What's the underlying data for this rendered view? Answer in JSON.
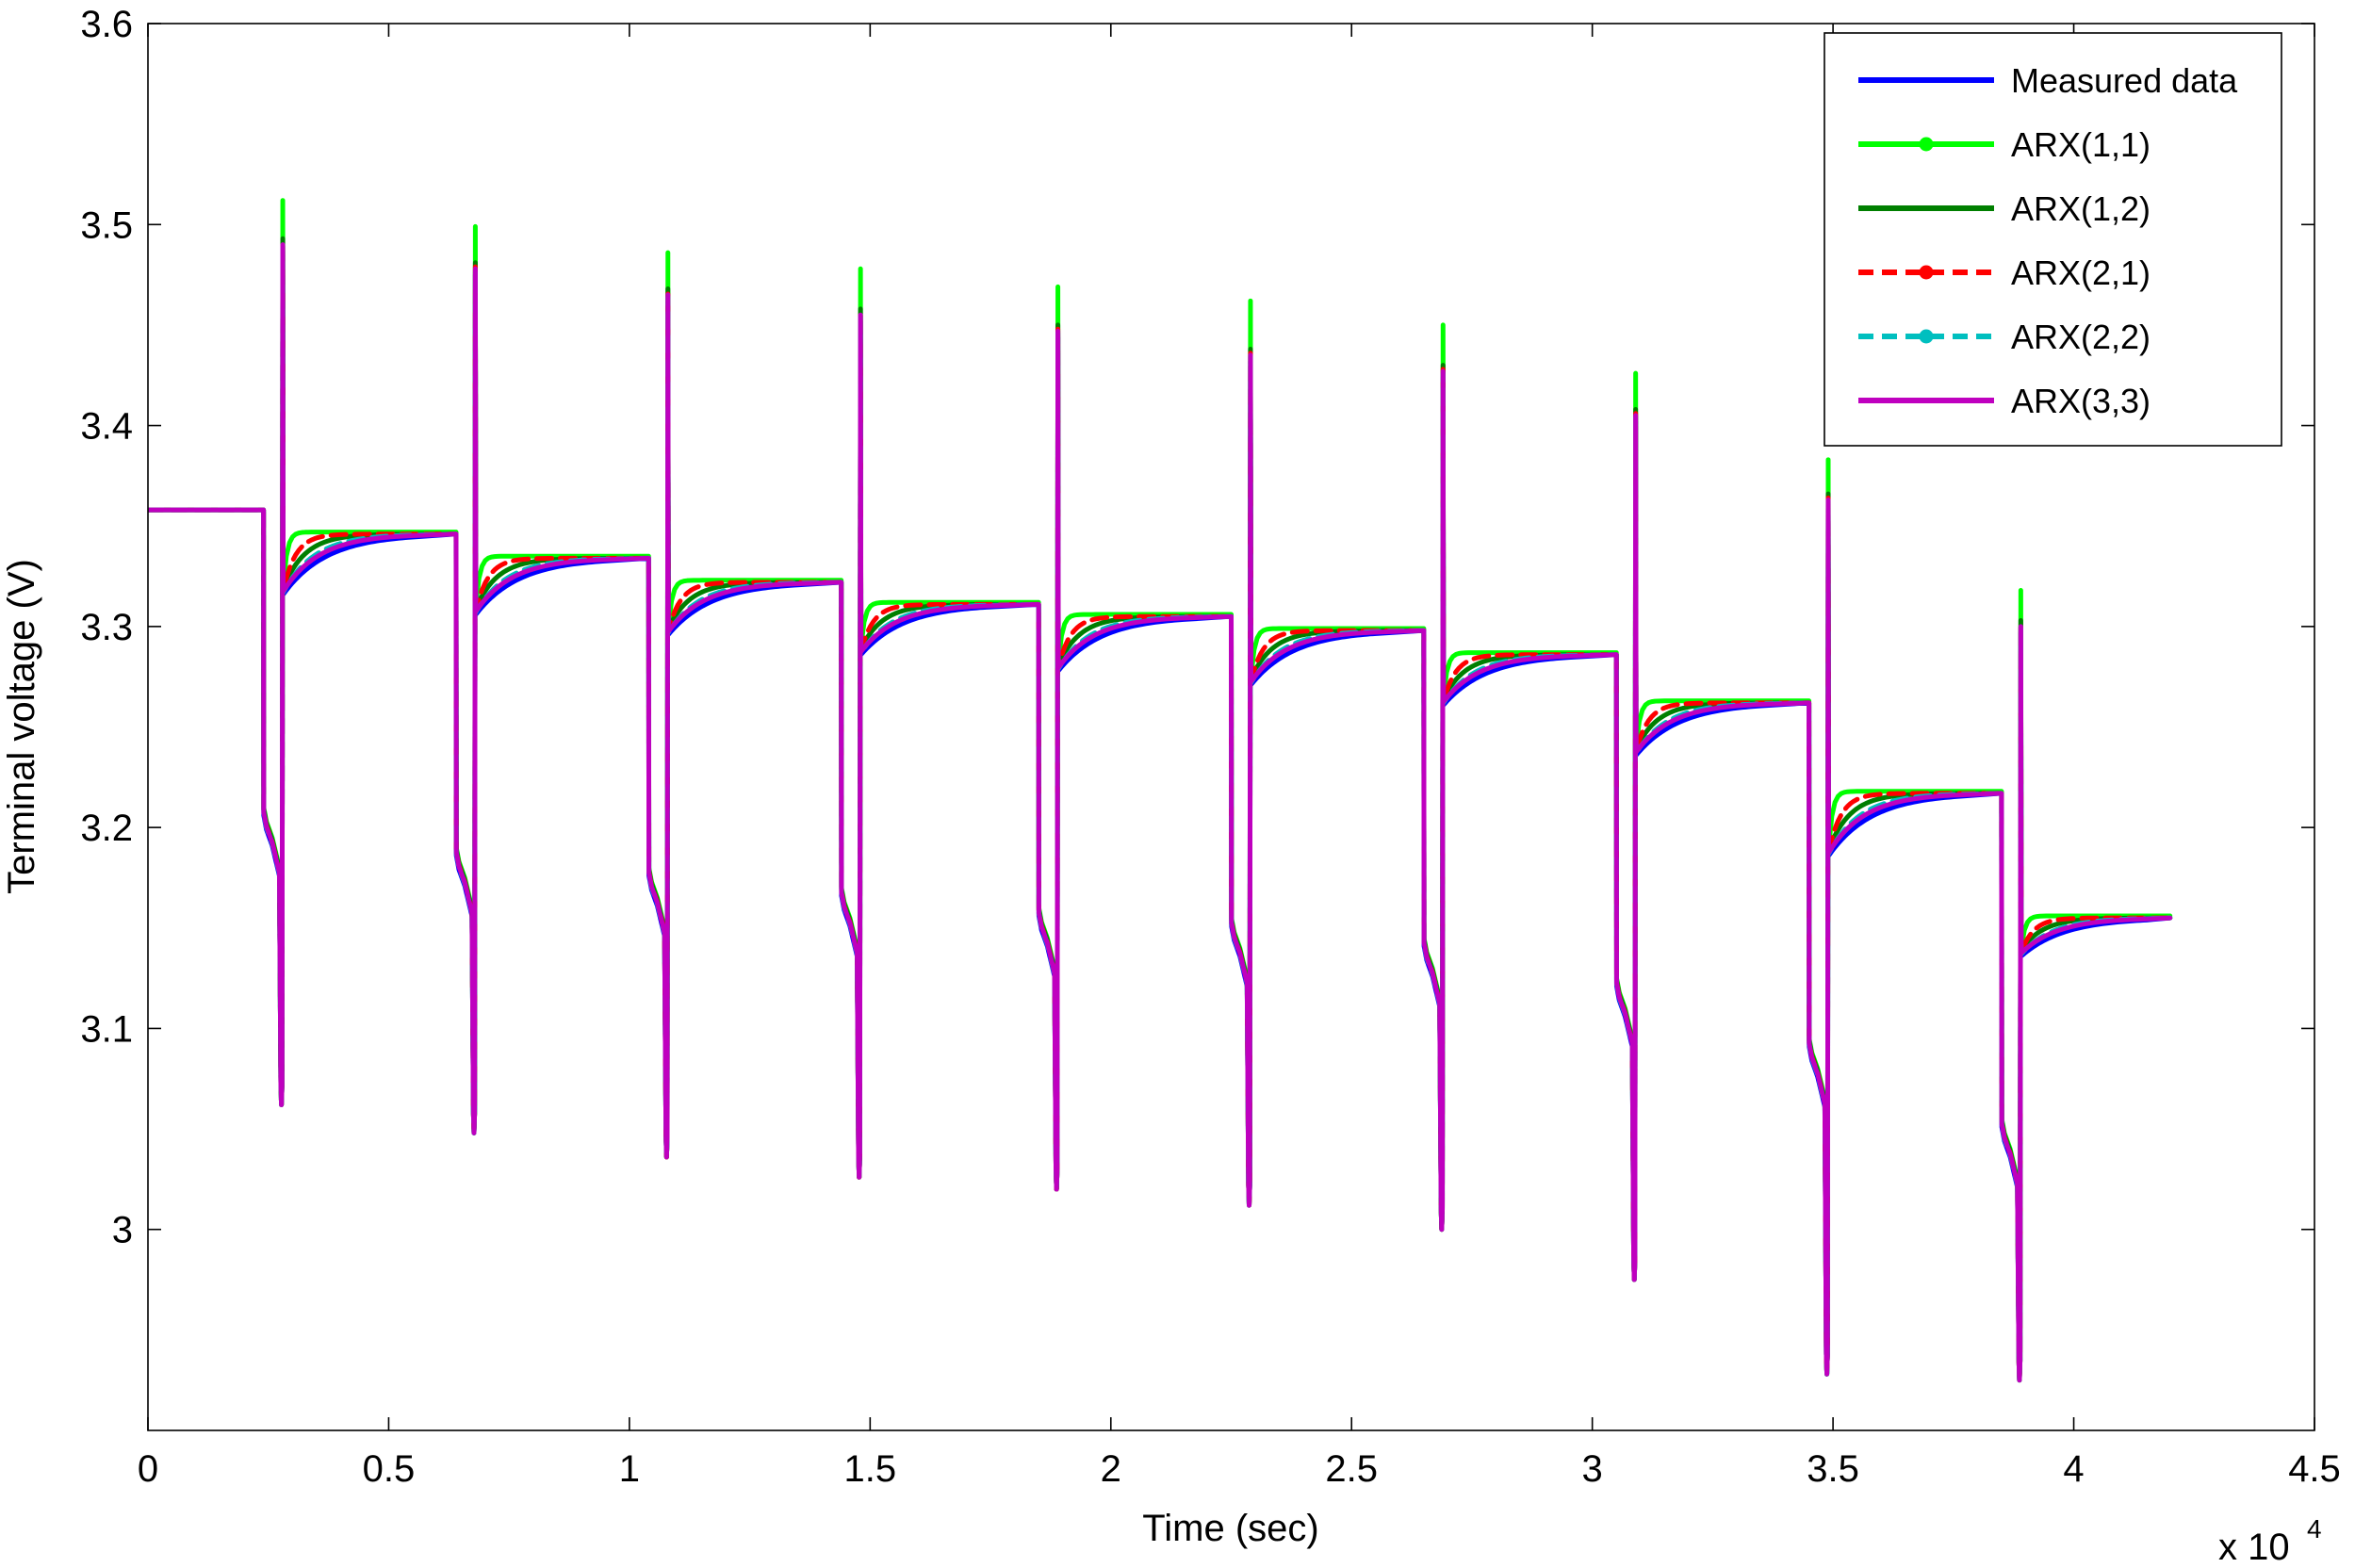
{
  "chart_data": {
    "type": "line",
    "title": "",
    "xlabel": "Time (sec)",
    "ylabel": "Terminal voltage (V)",
    "x_multiplier_label": "x 10",
    "x_multiplier_exponent": "4",
    "xlim": [
      0,
      45000
    ],
    "ylim": [
      2.9,
      3.6
    ],
    "grid": false,
    "legend_position": "top-right",
    "x_ticks": [
      0,
      5000,
      10000,
      15000,
      20000,
      25000,
      30000,
      35000,
      40000,
      45000
    ],
    "x_tick_labels": [
      "0",
      "0.5",
      "1",
      "1.5",
      "2",
      "2.5",
      "3",
      "3.5",
      "4",
      "4.5"
    ],
    "y_ticks": [
      3.0,
      3.1,
      3.2,
      3.3,
      3.4,
      3.5,
      3.6
    ],
    "y_tick_labels": [
      "3",
      "3.1",
      "3.2",
      "3.3",
      "3.4",
      "3.5",
      "3.6"
    ],
    "pulse_cycles": [
      {
        "start": 2400,
        "rest_before": 3.358,
        "mid_low": 3.195,
        "min": 3.062,
        "peak_measured": 3.495,
        "peak_arx11": 3.512,
        "recover_start": 3.32,
        "rest_after": 3.346
      },
      {
        "start": 6400,
        "rest_before": 3.346,
        "mid_low": 3.175,
        "min": 3.048,
        "peak_measured": 3.483,
        "peak_arx11": 3.499,
        "recover_start": 3.31,
        "rest_after": 3.334
      },
      {
        "start": 10400,
        "rest_before": 3.334,
        "mid_low": 3.165,
        "min": 3.036,
        "peak_measured": 3.47,
        "peak_arx11": 3.486,
        "recover_start": 3.3,
        "rest_after": 3.322
      },
      {
        "start": 14400,
        "rest_before": 3.322,
        "mid_low": 3.155,
        "min": 3.026,
        "peak_measured": 3.46,
        "peak_arx11": 3.478,
        "recover_start": 3.29,
        "rest_after": 3.311
      },
      {
        "start": 18500,
        "rest_before": 3.311,
        "mid_low": 3.145,
        "min": 3.02,
        "peak_measured": 3.452,
        "peak_arx11": 3.469,
        "recover_start": 3.282,
        "rest_after": 3.305
      },
      {
        "start": 22500,
        "rest_before": 3.305,
        "mid_low": 3.14,
        "min": 3.012,
        "peak_measured": 3.44,
        "peak_arx11": 3.462,
        "recover_start": 3.275,
        "rest_after": 3.298
      },
      {
        "start": 26500,
        "rest_before": 3.298,
        "mid_low": 3.13,
        "min": 3.0,
        "peak_measured": 3.432,
        "peak_arx11": 3.45,
        "recover_start": 3.265,
        "rest_after": 3.286
      },
      {
        "start": 30500,
        "rest_before": 3.286,
        "mid_low": 3.11,
        "min": 2.975,
        "peak_measured": 3.41,
        "peak_arx11": 3.426,
        "recover_start": 3.24,
        "rest_after": 3.262
      },
      {
        "start": 34500,
        "rest_before": 3.262,
        "mid_low": 3.08,
        "min": 2.928,
        "peak_measured": 3.368,
        "peak_arx11": 3.383,
        "recover_start": 3.19,
        "rest_after": 3.217
      },
      {
        "start": 38500,
        "rest_before": 3.217,
        "mid_low": 3.04,
        "min": 2.925,
        "peak_measured": 3.305,
        "peak_arx11": 3.318,
        "recover_start": 3.14,
        "rest_after": 3.155
      }
    ],
    "x_end": 42000,
    "series": [
      {
        "name": "Measured data",
        "color": "#0000ff",
        "style": "solid",
        "marker": "none",
        "fit_offset": -0.004,
        "fit_tau": 900
      },
      {
        "name": "ARX(1,1)",
        "color": "#00ff00",
        "style": "solid",
        "marker": "circle",
        "fit_offset": 0.0,
        "fit_tau": 80
      },
      {
        "name": "ARX(1,2)",
        "color": "#007f00",
        "style": "solid",
        "marker": "none",
        "fit_offset": -0.001,
        "fit_tau": 450
      },
      {
        "name": "ARX(2,1)",
        "color": "#ff0000",
        "style": "dashed",
        "marker": "circle",
        "fit_offset": -0.002,
        "fit_tau": 260
      },
      {
        "name": "ARX(2,2)",
        "color": "#00bfbf",
        "style": "dashed",
        "marker": "circle",
        "fit_offset": -0.003,
        "fit_tau": 650
      },
      {
        "name": "ARX(3,3)",
        "color": "#bf00bf",
        "style": "solid",
        "marker": "none",
        "fit_offset": -0.0025,
        "fit_tau": 750
      }
    ]
  }
}
